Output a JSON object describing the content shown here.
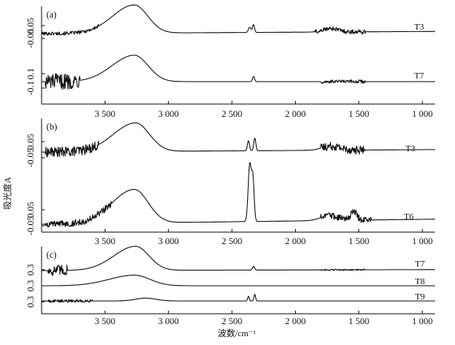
{
  "chart_data": [
    {
      "panel": "(a)",
      "type": "line",
      "xlim": [
        4000,
        900
      ],
      "xticks": [
        3500,
        3000,
        2500,
        2000,
        1500,
        1000
      ],
      "xtick_labels": [
        "3 500",
        "3 000",
        "2 500",
        "2 000",
        "1 500",
        "1 000"
      ],
      "ylabel": "",
      "series": [
        {
          "name": "T3",
          "ytick_labels": [
            "0.05",
            "-0.05"
          ],
          "peaks": [
            {
              "x": 3270,
              "y": 0.32,
              "width": 170
            },
            {
              "x": 2360,
              "y": 0.06,
              "width": 10
            },
            {
              "x": 2330,
              "y": 0.09,
              "width": 8
            },
            {
              "x": 1720,
              "y": 0.04,
              "width": 60
            }
          ],
          "baseline_start": 0.0,
          "baseline_end": 0.025,
          "noise": [
            {
              "from": 4000,
              "to": 3550,
              "amp": 0.02
            },
            {
              "from": 1850,
              "to": 1450,
              "amp": 0.025
            }
          ]
        },
        {
          "name": "T7",
          "ytick_labels": [
            "0.1",
            "-0.1"
          ],
          "peaks": [
            {
              "x": 3270,
              "y": 0.3,
              "width": 175
            },
            {
              "x": 2330,
              "y": 0.06,
              "width": 8
            }
          ],
          "baseline_start": 0.0,
          "baseline_end": 0.0,
          "noise": [
            {
              "from": 3970,
              "to": 3700,
              "amp": 0.09
            },
            {
              "from": 1800,
              "to": 1450,
              "amp": 0.02
            }
          ]
        }
      ]
    },
    {
      "panel": "(b)",
      "type": "line",
      "xlim": [
        4000,
        900
      ],
      "xticks": [
        3500,
        3000,
        2500,
        2000,
        1500,
        1000
      ],
      "xtick_labels": [
        "3 500",
        "3 000",
        "2 500",
        "2 000",
        "1 500",
        "1 000"
      ],
      "ylabel": "吸光度A",
      "series": [
        {
          "name": "T3",
          "ytick_labels": [
            "0.05",
            "-0.05"
          ],
          "peaks": [
            {
              "x": 3260,
              "y": 0.34,
              "width": 175
            },
            {
              "x": 2370,
              "y": 0.12,
              "width": 8
            },
            {
              "x": 2320,
              "y": 0.15,
              "width": 8
            },
            {
              "x": 1720,
              "y": 0.05,
              "width": 70
            }
          ],
          "baseline_start": 0.0,
          "baseline_end": 0.03,
          "noise": [
            {
              "from": 3970,
              "to": 3550,
              "amp": 0.06
            },
            {
              "from": 1800,
              "to": 1450,
              "amp": 0.05
            }
          ]
        },
        {
          "name": "T6",
          "ytick_labels": [
            "0.05",
            "-0.05"
          ],
          "peaks": [
            {
              "x": 3270,
              "y": 0.4,
              "width": 175
            },
            {
              "x": 2360,
              "y": 0.68,
              "width": 12
            },
            {
              "x": 2335,
              "y": 0.5,
              "width": 10
            },
            {
              "x": 1730,
              "y": 0.06,
              "width": 70
            },
            {
              "x": 1540,
              "y": 0.1,
              "width": 25
            }
          ],
          "baseline_start": -0.02,
          "baseline_end": 0.04,
          "noise": [
            {
              "from": 3970,
              "to": 3450,
              "amp": 0.04
            },
            {
              "from": 1800,
              "to": 1400,
              "amp": 0.04
            }
          ]
        }
      ]
    },
    {
      "panel": "(c)",
      "type": "line",
      "xlim": [
        4000,
        900
      ],
      "xticks": [
        3500,
        3000,
        2500,
        2000,
        1500,
        1000
      ],
      "xtick_labels": [
        "3 500",
        "3 000",
        "2 500",
        "2 000",
        "1 500",
        "1 000"
      ],
      "xlabel": "波数/cm⁻¹",
      "series": [
        {
          "name": "T7",
          "ytick_labels": [
            "0.3"
          ],
          "peaks": [
            {
              "x": 3260,
              "y": 0.5,
              "width": 170
            },
            {
              "x": 2330,
              "y": 0.08,
              "width": 8
            }
          ],
          "baseline_start": 0.0,
          "baseline_end": 0.02,
          "noise": [
            {
              "from": 3950,
              "to": 3800,
              "amp": 0.12
            },
            {
              "from": 1800,
              "to": 1450,
              "amp": 0.015
            }
          ]
        },
        {
          "name": "T8",
          "ytick_labels": [
            "0.3"
          ],
          "peaks": [
            {
              "x": 3270,
              "y": 0.22,
              "width": 200
            }
          ],
          "baseline_start": 0.0,
          "baseline_end": 0.0,
          "noise": []
        },
        {
          "name": "T9",
          "ytick_labels": [
            "0.3"
          ],
          "peaks": [
            {
              "x": 3180,
              "y": 0.06,
              "width": 80
            },
            {
              "x": 2370,
              "y": 0.1,
              "width": 6
            },
            {
              "x": 2320,
              "y": 0.14,
              "width": 6
            }
          ],
          "baseline_start": 0.0,
          "baseline_end": 0.0,
          "noise": [
            {
              "from": 3950,
              "to": 3600,
              "amp": 0.03
            }
          ]
        }
      ]
    }
  ]
}
